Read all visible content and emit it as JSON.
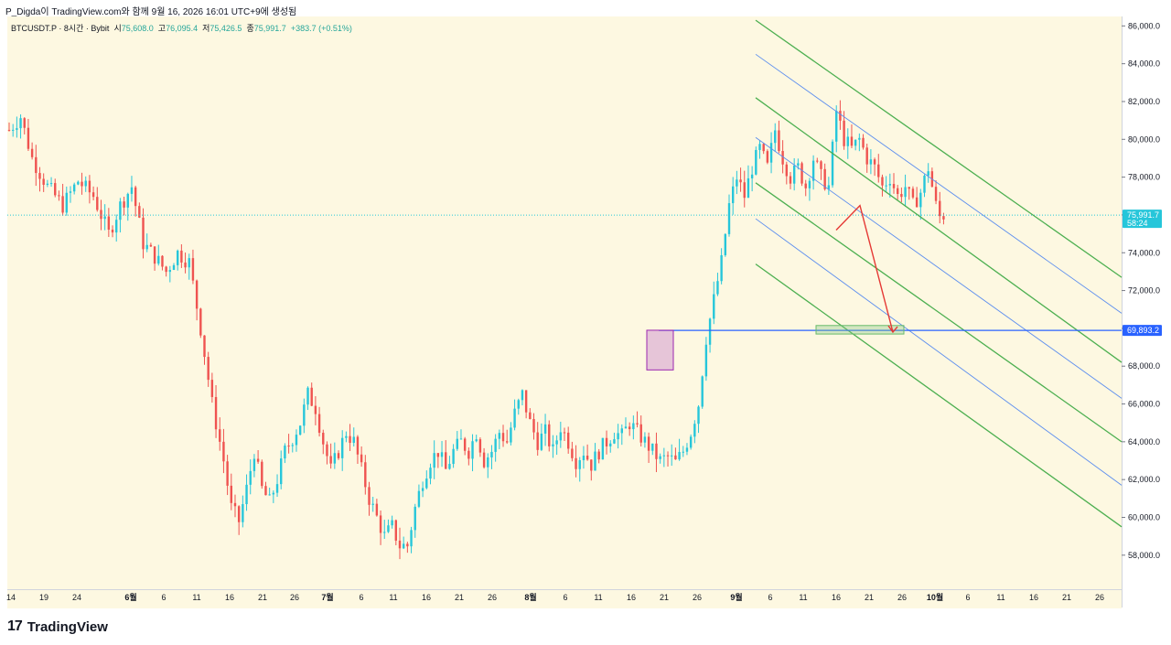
{
  "header": {
    "title": "P_Digda이 TradingView.com와 함께 9월 16, 2026 16:01 UTC+9에 생성됨"
  },
  "legend": {
    "symbol": "BTCUSDT.P · 8시간 · Bybit",
    "open_label": "시",
    "open": "75,608.0",
    "high_label": "고",
    "high": "76,095.4",
    "low_label": "저",
    "low": "75,426.5",
    "close_label": "종",
    "close": "75,991.7",
    "change": "+383.7 (+0.51%)"
  },
  "current_price": {
    "value": "75,991.7",
    "timer": "58:24"
  },
  "target_price": {
    "value": "69,893.2"
  },
  "footer": {
    "logo_text": "TradingView",
    "logo_mark": "17"
  },
  "colors": {
    "background": "#fdf8e1",
    "up": "#26c6da",
    "down": "#ef5350",
    "channel_green": "#4caf50",
    "channel_blue": "#5b8def",
    "target_line": "#2962ff",
    "projection": "#e53935"
  },
  "chart_data": {
    "type": "candlestick",
    "title": "",
    "y_ticks": [
      "58,000.0",
      "60,000.0",
      "62,000.0",
      "64,000.0",
      "66,000.0",
      "68,000.0",
      "70,000.0",
      "72,000.0",
      "74,000.0",
      "76,000.0",
      "78,000.0",
      "80,000.0",
      "82,000.0",
      "84,000.0",
      "86,000.0"
    ],
    "x_ticks": [
      "14",
      "19",
      "24",
      "6월",
      "6",
      "11",
      "16",
      "21",
      "26",
      "7월",
      "6",
      "11",
      "16",
      "21",
      "26",
      "8월",
      "6",
      "11",
      "16",
      "21",
      "26",
      "9월",
      "6",
      "11",
      "16",
      "21",
      "26",
      "10월",
      "6",
      "11",
      "16",
      "21",
      "26"
    ],
    "ylim": [
      56200,
      86500
    ],
    "price_path": [
      [
        0,
        80500
      ],
      [
        3,
        81200
      ],
      [
        6,
        79000
      ],
      [
        10,
        77500
      ],
      [
        14,
        76500
      ],
      [
        18,
        77800
      ],
      [
        22,
        77000
      ],
      [
        26,
        75000
      ],
      [
        29,
        76500
      ],
      [
        32,
        77500
      ],
      [
        35,
        74500
      ],
      [
        38,
        73800
      ],
      [
        41,
        73000
      ],
      [
        44,
        74000
      ],
      [
        47,
        73500
      ],
      [
        50,
        70000
      ],
      [
        53,
        66000
      ],
      [
        56,
        63000
      ],
      [
        58,
        60500
      ],
      [
        60,
        59800
      ],
      [
        62,
        61500
      ],
      [
        64,
        63500
      ],
      [
        66,
        61500
      ],
      [
        68,
        60800
      ],
      [
        70,
        62000
      ],
      [
        72,
        63500
      ],
      [
        74,
        64200
      ],
      [
        76,
        65000
      ],
      [
        78,
        66500
      ],
      [
        80,
        65800
      ],
      [
        82,
        64000
      ],
      [
        84,
        62500
      ],
      [
        86,
        63500
      ],
      [
        88,
        64500
      ],
      [
        90,
        64000
      ],
      [
        92,
        62500
      ],
      [
        94,
        61000
      ],
      [
        96,
        60000
      ],
      [
        98,
        59000
      ],
      [
        100,
        59500
      ],
      [
        102,
        58500
      ],
      [
        104,
        58500
      ],
      [
        106,
        60500
      ],
      [
        108,
        62000
      ],
      [
        110,
        63000
      ],
      [
        112,
        63500
      ],
      [
        114,
        62500
      ],
      [
        116,
        63500
      ],
      [
        118,
        64000
      ],
      [
        120,
        63500
      ],
      [
        122,
        64500
      ],
      [
        124,
        63000
      ],
      [
        126,
        63500
      ],
      [
        128,
        64500
      ],
      [
        130,
        64000
      ],
      [
        132,
        65500
      ],
      [
        134,
        66500
      ],
      [
        136,
        65000
      ],
      [
        138,
        64000
      ],
      [
        140,
        64500
      ],
      [
        142,
        63500
      ],
      [
        144,
        64800
      ],
      [
        146,
        64000
      ],
      [
        148,
        63000
      ],
      [
        150,
        63500
      ],
      [
        152,
        62800
      ],
      [
        154,
        63500
      ],
      [
        156,
        64000
      ],
      [
        158,
        64500
      ],
      [
        160,
        64300
      ],
      [
        162,
        65000
      ],
      [
        164,
        64500
      ],
      [
        166,
        64000
      ],
      [
        168,
        63500
      ],
      [
        170,
        63000
      ],
      [
        172,
        63200
      ],
      [
        174,
        62900
      ],
      [
        176,
        63500
      ],
      [
        178,
        64500
      ],
      [
        180,
        66000
      ],
      [
        182,
        69500
      ],
      [
        184,
        71500
      ],
      [
        186,
        73500
      ],
      [
        188,
        76500
      ],
      [
        190,
        78000
      ],
      [
        192,
        77000
      ],
      [
        194,
        78500
      ],
      [
        196,
        79500
      ],
      [
        198,
        78500
      ],
      [
        200,
        80500
      ],
      [
        202,
        79000
      ],
      [
        204,
        78000
      ],
      [
        206,
        78500
      ],
      [
        208,
        77500
      ],
      [
        210,
        79000
      ],
      [
        212,
        78000
      ],
      [
        214,
        77500
      ],
      [
        216,
        81500
      ],
      [
        218,
        80000
      ],
      [
        220,
        79500
      ],
      [
        222,
        80000
      ],
      [
        224,
        79000
      ],
      [
        226,
        78500
      ],
      [
        228,
        77500
      ],
      [
        230,
        78000
      ],
      [
        232,
        77000
      ],
      [
        234,
        77500
      ],
      [
        236,
        76500
      ],
      [
        238,
        77200
      ],
      [
        240,
        78500
      ],
      [
        242,
        76500
      ],
      [
        243,
        75900
      ],
      [
        244,
        76000
      ]
    ],
    "channel_top_green": {
      "from": [
        "9월 3",
        86300
      ],
      "to": [
        "10월 31",
        72700
      ]
    },
    "channel_upper_blue": {
      "from": [
        "9월 3",
        84500
      ],
      "to": [
        "10월 31",
        70800
      ]
    },
    "channel_mid_green": {
      "from": [
        "9월 3",
        82200
      ],
      "to": [
        "10월 31",
        68200
      ]
    },
    "channel_mid_blue_a": {
      "from": [
        "9월 3",
        80100
      ],
      "to": [
        "10월 31",
        66300
      ]
    },
    "channel_lower_green": {
      "from": [
        "9월 3",
        77700
      ],
      "to": [
        "10월 31",
        64000
      ]
    },
    "channel_lower_blue": {
      "from": [
        "9월 3",
        75800
      ],
      "to": [
        "10월 31",
        61700
      ]
    },
    "channel_bottom_green": {
      "from": [
        "9월 3",
        73400
      ],
      "to": [
        "10월 31",
        59500
      ]
    },
    "target_level": 69893.2,
    "current_level": 75991.7,
    "projection_path": [
      [
        245,
        75200
      ],
      [
        252,
        76500
      ],
      [
        262,
        69800
      ]
    ],
    "breakout_box": {
      "x_from": 187,
      "x_to": 195,
      "y_from": 67800,
      "y_to": 69900
    },
    "target_zone": {
      "x_from": 235,
      "x_to": 262,
      "y_from": 69700,
      "y_to": 70150
    }
  }
}
